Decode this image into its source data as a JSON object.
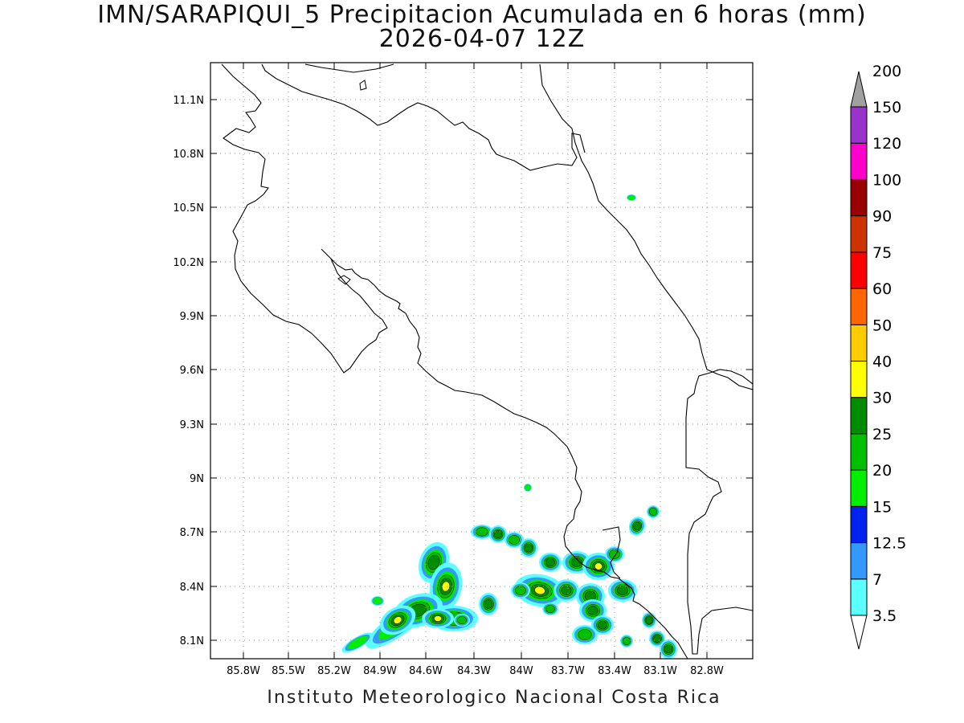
{
  "title": "IMN/SARAPIQUI_5 Precipitacion Acumulada en 6 horas (mm)",
  "subtitle": "2026-04-07 12Z",
  "footer": "Instituto Meteorologico Nacional Costa Rica",
  "map": {
    "lon_range": [
      -86.0,
      -82.5
    ],
    "lat_range": [
      8.0,
      11.3
    ],
    "grid": "dotted",
    "lat_ticks": [
      "11.1N",
      "10.8N",
      "10.5N",
      "10.2N",
      "9.9N",
      "9.6N",
      "9.3N",
      "9N",
      "8.7N",
      "8.4N",
      "8.1N"
    ],
    "lon_ticks": [
      "85.8W",
      "85.5W",
      "85.2W",
      "84.9W",
      "84.6W",
      "84.3W",
      "84W",
      "83.7W",
      "83.4W",
      "83.1W",
      "82.8W"
    ]
  },
  "colorbar": {
    "levels": [
      "3.5",
      "7",
      "12.5",
      "15",
      "20",
      "25",
      "30",
      "40",
      "50",
      "60",
      "75",
      "90",
      "100",
      "120",
      "150",
      "200"
    ],
    "colors": [
      "#5cffff",
      "#3399ff",
      "#0022ee",
      "#00ee00",
      "#00c000",
      "#008c00",
      "#ffff00",
      "#ffcc00",
      "#ff6600",
      "#ff0000",
      "#cc3300",
      "#990000",
      "#ff00cc",
      "#9933cc",
      "#f7f7f7",
      "#a0a0a0"
    ]
  }
}
